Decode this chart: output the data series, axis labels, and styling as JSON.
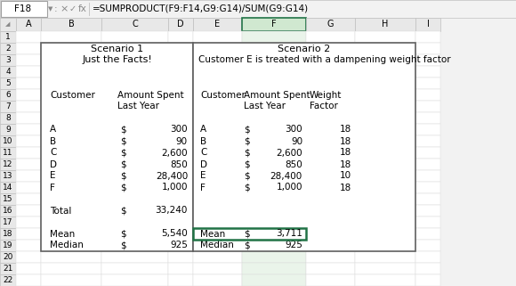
{
  "formula_bar_cell": "F18",
  "formula_bar_formula": "=SUMPRODUCT(F9:F14,G9:G14)/SUM(G9:G14)",
  "selected_col": "F",
  "selected_row_idx": 17,
  "cell_selected_border": "#217346",
  "cell_selected_bg": "#e8f4e8",
  "col_header_selected_bg": "#b8d4b8",
  "bg_color": "#f2f2f2",
  "header_bg": "#e8e8e8",
  "col_header_F_bg": "#d0e8d0",
  "box1": {
    "title1": "Scenario 1",
    "title2": "Just the Facts!",
    "customers": [
      "A",
      "B",
      "C",
      "D",
      "E",
      "F"
    ],
    "amounts": [
      "300",
      "90",
      "2,600",
      "850",
      "28,400",
      "1,000"
    ],
    "total_label": "Total",
    "total_dollar": "$",
    "total_value": "33,240",
    "mean_label": "Mean",
    "mean_dollar": "$",
    "mean_value": "5,540",
    "median_label": "Median",
    "median_dollar": "$",
    "median_value": "925"
  },
  "box2": {
    "title1": "Scenario 2",
    "title2": "Customer E is treated with a dampening weight factor",
    "customers": [
      "A",
      "B",
      "C",
      "D",
      "E",
      "F"
    ],
    "amounts": [
      "300",
      "90",
      "2,600",
      "850",
      "28,400",
      "1,000"
    ],
    "weights": [
      "18",
      "18",
      "18",
      "18",
      "10",
      "18"
    ],
    "mean_label": "Mean",
    "mean_dollar": "$",
    "mean_value": "3,711",
    "median_label": "Median",
    "median_dollar": "$",
    "median_value": "925"
  }
}
